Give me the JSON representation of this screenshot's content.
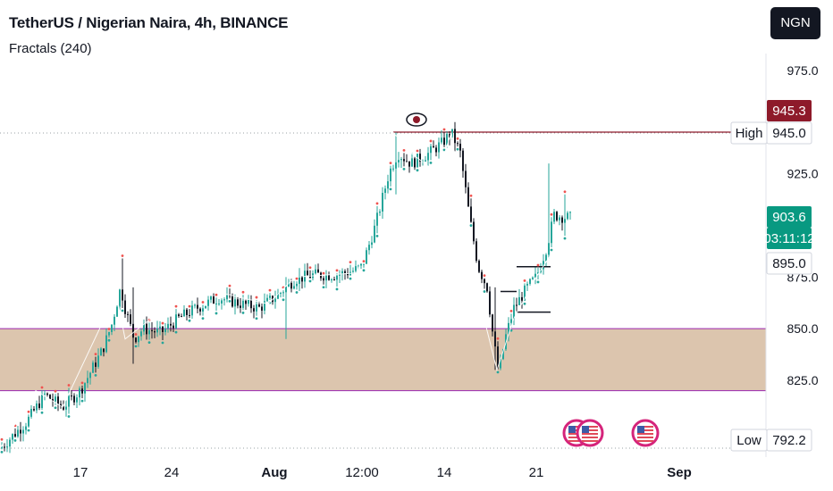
{
  "header": {
    "title": "TetherUS / Nigerian Naira, 4h, BINANCE",
    "indicator": "Fractals (240)",
    "currency": "NGN"
  },
  "chart_data": {
    "type": "candlestick",
    "symbol": "USDT/NGN",
    "interval": "4h",
    "exchange": "BINANCE",
    "y_ticks": [
      "975.0",
      "925.0",
      "875.0",
      "850.0",
      "825.0"
    ],
    "x_ticks": [
      "17",
      "24",
      "Aug",
      "12:00",
      "14",
      "21",
      "Sep"
    ],
    "price_labels": {
      "prev_high": "945.3",
      "high_label": "High",
      "high_value": "945.0",
      "last_price": "903.6",
      "countdown": "03:11:12",
      "level": "895.0",
      "low_label": "Low",
      "low_value": "792.2"
    },
    "zone": {
      "top": 850.0,
      "bottom": 820.0,
      "color": "#d3b79a"
    },
    "colors": {
      "up": "#26a69a",
      "down": "#131722",
      "fractal_up": "#ef5350",
      "fractal_down": "#26a69a",
      "zone_line": "#9c27b0",
      "high_line": "#8e1a2a"
    },
    "price_path": [
      [
        0,
        792
      ],
      [
        30,
        805
      ],
      [
        50,
        818
      ],
      [
        70,
        812
      ],
      [
        90,
        820
      ],
      [
        115,
        840
      ],
      [
        125,
        852
      ],
      [
        135,
        870
      ],
      [
        140,
        860
      ],
      [
        150,
        845
      ],
      [
        160,
        850
      ],
      [
        180,
        848
      ],
      [
        200,
        855
      ],
      [
        220,
        860
      ],
      [
        245,
        865
      ],
      [
        270,
        862
      ],
      [
        290,
        860
      ],
      [
        310,
        866
      ],
      [
        330,
        874
      ],
      [
        350,
        876
      ],
      [
        375,
        876
      ],
      [
        395,
        878
      ],
      [
        405,
        880
      ],
      [
        420,
        900
      ],
      [
        435,
        925
      ],
      [
        445,
        935
      ],
      [
        460,
        930
      ],
      [
        480,
        935
      ],
      [
        495,
        940
      ],
      [
        505,
        945
      ],
      [
        515,
        935
      ],
      [
        525,
        905
      ],
      [
        535,
        880
      ],
      [
        545,
        870
      ],
      [
        552,
        845
      ],
      [
        558,
        828
      ],
      [
        565,
        845
      ],
      [
        575,
        860
      ],
      [
        590,
        870
      ],
      [
        600,
        875
      ],
      [
        612,
        890
      ],
      [
        620,
        905
      ],
      [
        632,
        904
      ],
      [
        640,
        903.6
      ]
    ],
    "hlines": [
      {
        "price": 868,
        "x1": 560,
        "x2": 578
      },
      {
        "price": 858,
        "x1": 578,
        "x2": 616
      },
      {
        "price": 880,
        "x1": 578,
        "x2": 616
      }
    ]
  }
}
